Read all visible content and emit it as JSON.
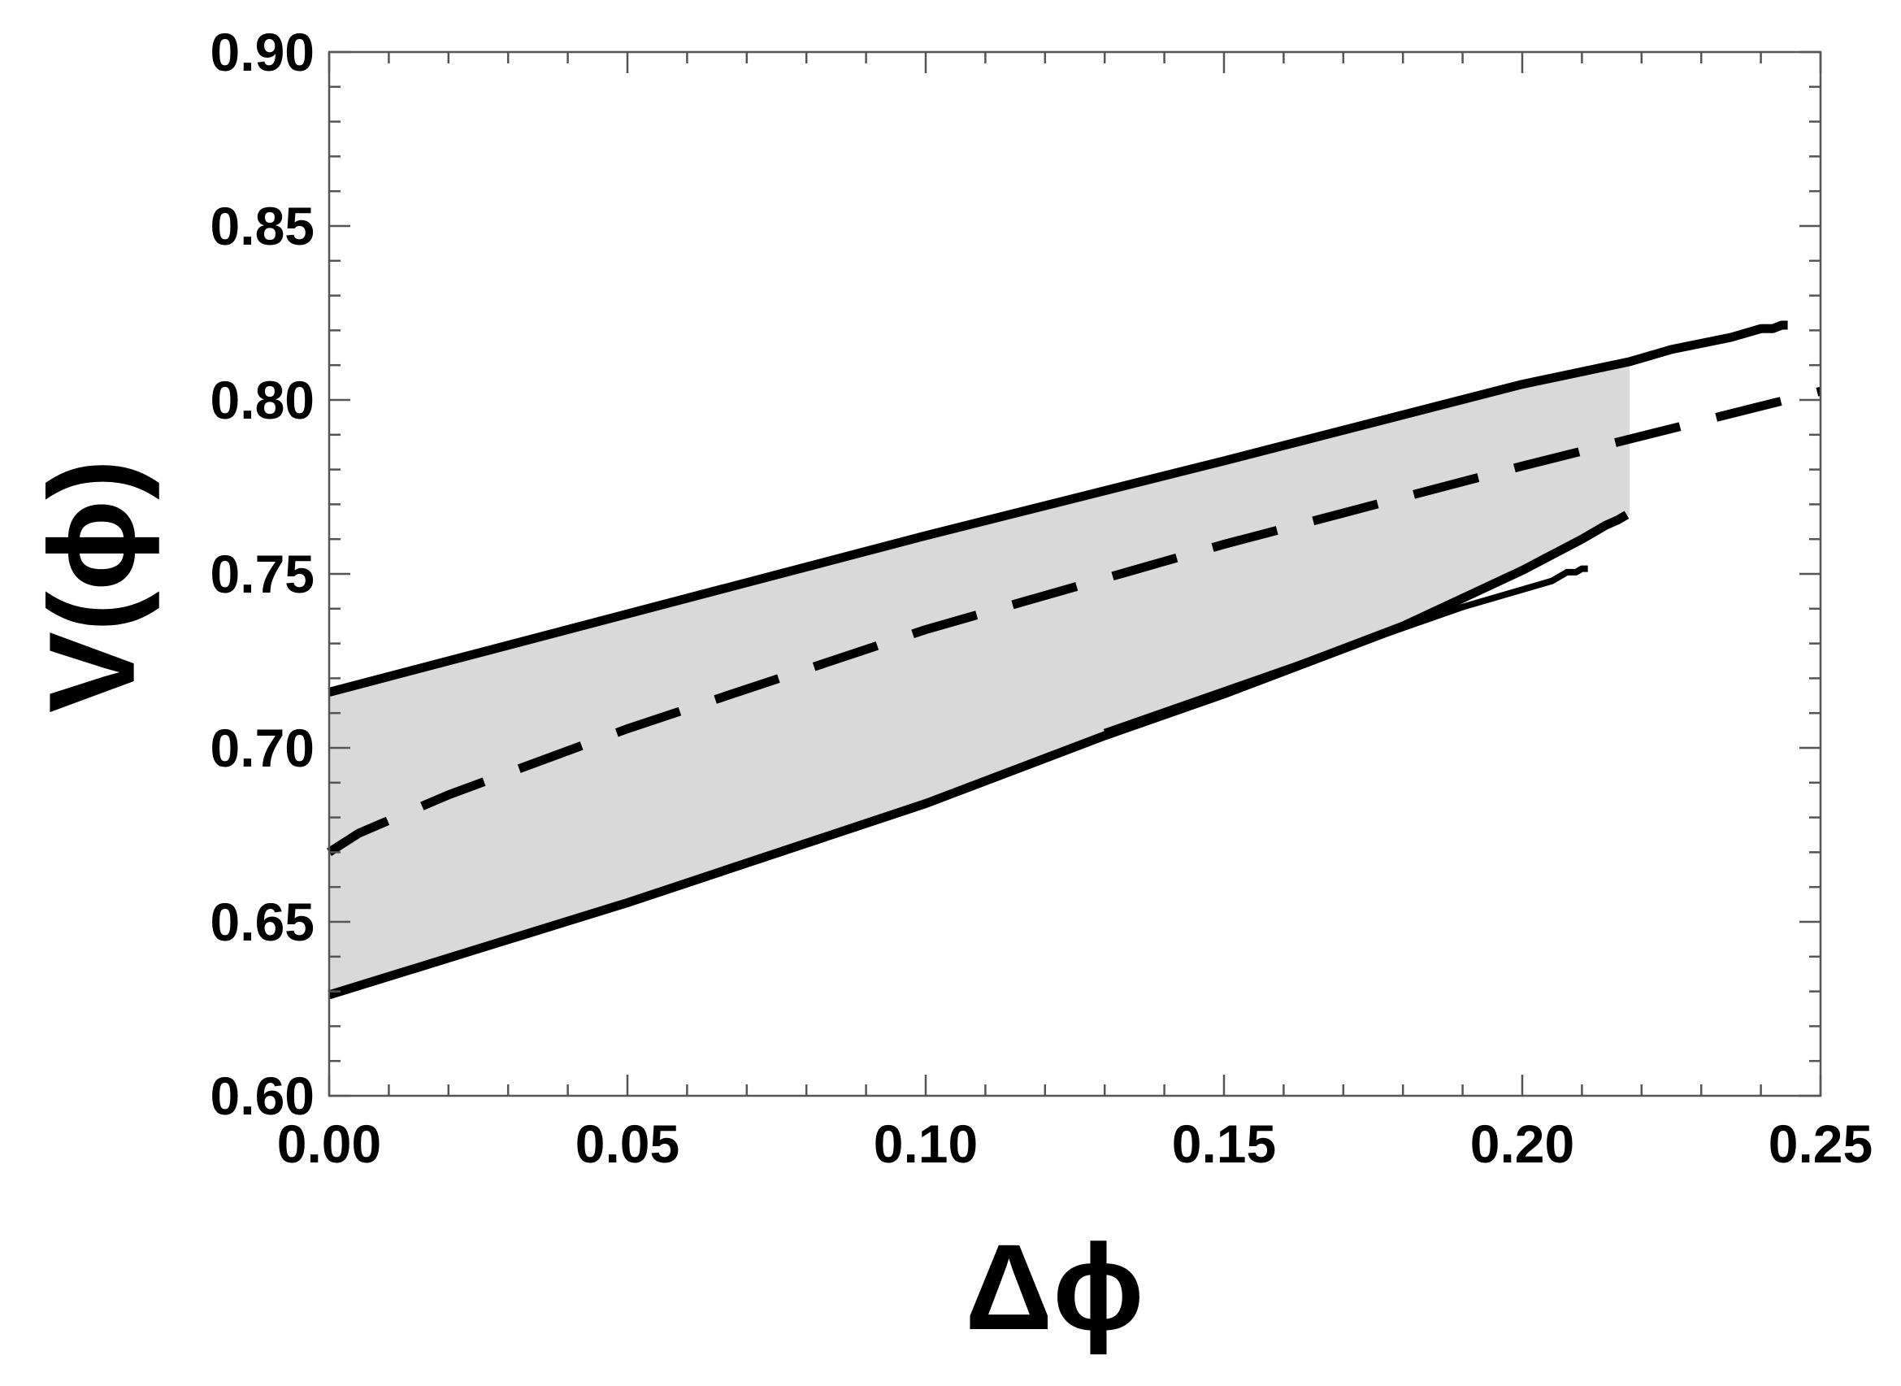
{
  "chart_data": {
    "type": "line",
    "title": "",
    "xlabel": "Δϕ",
    "ylabel": "V(ϕ)",
    "xlim": [
      0.0,
      0.25
    ],
    "ylim": [
      0.6,
      0.9
    ],
    "x_ticks": [
      "0.00",
      "0.05",
      "0.10",
      "0.15",
      "0.20",
      "0.25"
    ],
    "y_ticks": [
      "0.60",
      "0.65",
      "0.70",
      "0.75",
      "0.80",
      "0.85",
      "0.90"
    ],
    "grid": false,
    "legend": "none",
    "shaded_band": {
      "color": "#d9d9d9",
      "upper_x": [
        0.0,
        0.05,
        0.1,
        0.15,
        0.2,
        0.218
      ],
      "upper_y": [
        0.716,
        0.7385,
        0.761,
        0.7825,
        0.8045,
        0.811
      ],
      "lower_x": [
        0.0,
        0.05,
        0.1,
        0.13,
        0.15,
        0.18,
        0.2,
        0.218
      ],
      "lower_y": [
        0.629,
        0.6555,
        0.684,
        0.7035,
        0.7155,
        0.735,
        0.751,
        0.767
      ]
    },
    "series": [
      {
        "style": "solid",
        "color": "#000000",
        "x": [
          0.0,
          0.05,
          0.1,
          0.15,
          0.2,
          0.218,
          0.225,
          0.235,
          0.24,
          0.242,
          0.2435,
          0.2445
        ],
        "y": [
          0.716,
          0.7385,
          0.761,
          0.7825,
          0.8045,
          0.811,
          0.8145,
          0.818,
          0.8205,
          0.8205,
          0.8215,
          0.8215
        ]
      },
      {
        "style": "solid",
        "color": "#000000",
        "x": [
          0.0,
          0.05,
          0.1,
          0.13,
          0.15,
          0.18,
          0.2,
          0.21,
          0.214,
          0.216,
          0.2175
        ],
        "y": [
          0.629,
          0.6555,
          0.684,
          0.7035,
          0.7155,
          0.735,
          0.751,
          0.76,
          0.764,
          0.7655,
          0.767
        ]
      },
      {
        "style": "solid",
        "color": "#000000",
        "x": [
          0.13,
          0.15,
          0.17,
          0.19,
          0.2,
          0.205,
          0.2075,
          0.209,
          0.21,
          0.211
        ],
        "y": [
          0.7045,
          0.7165,
          0.7285,
          0.7405,
          0.7455,
          0.748,
          0.7505,
          0.7505,
          0.7515,
          0.7515
        ]
      },
      {
        "style": "dashed",
        "color": "#000000",
        "x": [
          0.0,
          0.005,
          0.02,
          0.05,
          0.1,
          0.15,
          0.2,
          0.25
        ],
        "y": [
          0.67,
          0.6755,
          0.6865,
          0.7055,
          0.734,
          0.7585,
          0.781,
          0.8025
        ]
      }
    ]
  }
}
